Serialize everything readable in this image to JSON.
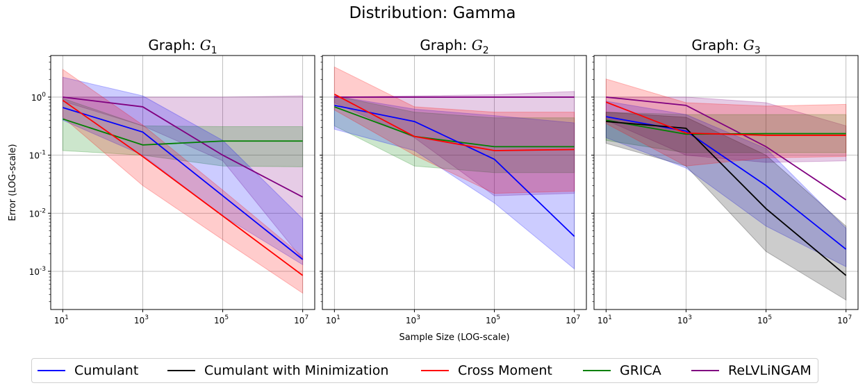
{
  "figure": {
    "suptitle": "Distribution: Gamma",
    "xlabel": "Sample Size (LOG-scale)",
    "ylabel": "Error (LOG-scale)"
  },
  "legend": {
    "placement": "bottom-center",
    "entries": [
      {
        "name": "Cumulant",
        "color": "#0000ff"
      },
      {
        "name": "Cumulant with Minimization",
        "color": "#000000"
      },
      {
        "name": "Cross Moment",
        "color": "#ff0000"
      },
      {
        "name": "GRICA",
        "color": "#008000"
      },
      {
        "name": "ReLVLiNGAM",
        "color": "#800080"
      }
    ]
  },
  "chart_data": [
    {
      "type": "line",
      "title": "Graph: G1",
      "title_main": "Graph: ",
      "title_symbol": "G",
      "title_sub": "1",
      "xscale": "log",
      "yscale": "log",
      "xlim": [
        5,
        20000000
      ],
      "ylim": [
        0.00022,
        5.2
      ],
      "xticks": [
        {
          "v": 10,
          "m": "1"
        },
        {
          "v": 1000,
          "m": "3"
        },
        {
          "v": 100000,
          "m": "5"
        },
        {
          "v": 10000000,
          "m": "7"
        }
      ],
      "yticks": [
        {
          "v": 0.001,
          "m": "-3"
        },
        {
          "v": 0.01,
          "m": "-2"
        },
        {
          "v": 0.1,
          "m": "-1"
        },
        {
          "v": 1,
          "m": "0"
        }
      ],
      "grid": true,
      "x": [
        10,
        1000,
        100000,
        10000000
      ],
      "series": [
        {
          "name": "ReLVLiNGAM",
          "color": "#800080",
          "values": [
            1.0,
            0.68,
            0.1,
            0.019
          ],
          "lower": [
            0.85,
            0.32,
            0.08,
            0.0016
          ],
          "upper": [
            1.0,
            1.0,
            1.0,
            1.05
          ]
        },
        {
          "name": "GRICA",
          "color": "#008000",
          "values": [
            0.42,
            0.15,
            0.175,
            0.175
          ],
          "lower": [
            0.12,
            0.1,
            0.065,
            0.063
          ],
          "upper": [
            0.95,
            0.32,
            0.31,
            0.31
          ]
        },
        {
          "name": "Cumulant",
          "color": "#0000ff",
          "values": [
            0.66,
            0.25,
            0.02,
            0.0016
          ],
          "lower": [
            0.4,
            0.1,
            0.009,
            0.0013
          ],
          "upper": [
            2.2,
            1.05,
            0.18,
            0.008
          ]
        },
        {
          "name": "Cross Moment",
          "color": "#ff0000",
          "values": [
            0.88,
            0.095,
            0.009,
            0.00085
          ],
          "lower": [
            0.45,
            0.03,
            0.0035,
            0.00042
          ],
          "upper": [
            3.0,
            0.33,
            0.025,
            0.0018
          ]
        }
      ]
    },
    {
      "type": "line",
      "title": "Graph: G2",
      "title_main": "Graph: ",
      "title_symbol": "G",
      "title_sub": "2",
      "xscale": "log",
      "yscale": "log",
      "xlim": [
        5,
        20000000
      ],
      "ylim": [
        0.00022,
        5.2
      ],
      "xticks": [
        {
          "v": 10,
          "m": "1"
        },
        {
          "v": 1000,
          "m": "3"
        },
        {
          "v": 100000,
          "m": "5"
        },
        {
          "v": 10000000,
          "m": "7"
        }
      ],
      "yticks": [],
      "grid": true,
      "x": [
        10,
        1000,
        100000,
        10000000
      ],
      "series": [
        {
          "name": "ReLVLiNGAM",
          "color": "#800080",
          "values": [
            1.0,
            1.0,
            1.0,
            1.0
          ],
          "lower": [
            0.8,
            0.2,
            0.02,
            0.022
          ],
          "upper": [
            1.0,
            1.05,
            1.1,
            1.25
          ]
        },
        {
          "name": "GRICA",
          "color": "#008000",
          "values": [
            0.68,
            0.21,
            0.14,
            0.14
          ],
          "lower": [
            0.32,
            0.065,
            0.05,
            0.05
          ],
          "upper": [
            1.05,
            0.55,
            0.44,
            0.44
          ]
        },
        {
          "name": "Cumulant",
          "color": "#0000ff",
          "values": [
            0.72,
            0.38,
            0.085,
            0.004
          ],
          "lower": [
            0.28,
            0.12,
            0.015,
            0.0011
          ],
          "upper": [
            1.05,
            0.62,
            0.48,
            0.36
          ]
        },
        {
          "name": "Cross Moment",
          "color": "#ff0000",
          "values": [
            1.12,
            0.21,
            0.12,
            0.125
          ],
          "lower": [
            0.6,
            0.1,
            0.022,
            0.024
          ],
          "upper": [
            3.3,
            0.68,
            0.55,
            0.55
          ]
        }
      ]
    },
    {
      "type": "line",
      "title": "Graph: G3",
      "title_main": "Graph: ",
      "title_symbol": "G",
      "title_sub": "3",
      "xscale": "log",
      "yscale": "log",
      "xlim": [
        5,
        20000000
      ],
      "ylim": [
        0.00022,
        5.2
      ],
      "xticks": [
        {
          "v": 10,
          "m": "1"
        },
        {
          "v": 1000,
          "m": "3"
        },
        {
          "v": 100000,
          "m": "5"
        },
        {
          "v": 10000000,
          "m": "7"
        }
      ],
      "yticks": [],
      "grid": true,
      "x": [
        10,
        1000,
        100000,
        10000000
      ],
      "series": [
        {
          "name": "ReLVLiNGAM",
          "color": "#800080",
          "values": [
            1.0,
            0.72,
            0.14,
            0.017
          ],
          "lower": [
            0.4,
            0.1,
            0.075,
            0.08
          ],
          "upper": [
            1.0,
            1.0,
            0.8,
            0.32
          ]
        },
        {
          "name": "GRICA",
          "color": "#008000",
          "values": [
            0.4,
            0.23,
            0.235,
            0.235
          ],
          "lower": [
            0.18,
            0.11,
            0.11,
            0.11
          ],
          "upper": [
            0.55,
            0.5,
            0.5,
            0.5
          ]
        },
        {
          "name": "Cumulant",
          "color": "#0000ff",
          "values": [
            0.46,
            0.26,
            0.03,
            0.0024
          ],
          "lower": [
            0.2,
            0.06,
            0.006,
            0.0012
          ],
          "upper": [
            0.85,
            0.5,
            0.13,
            0.0055
          ]
        },
        {
          "name": "Cumulant with Minimization",
          "color": "#000000",
          "values": [
            0.38,
            0.29,
            0.012,
            0.00085
          ],
          "lower": [
            0.16,
            0.065,
            0.0022,
            0.00032
          ],
          "upper": [
            0.55,
            0.45,
            0.1,
            0.006
          ]
        },
        {
          "name": "Cross Moment",
          "color": "#ff0000",
          "values": [
            0.82,
            0.24,
            0.22,
            0.22
          ],
          "lower": [
            0.35,
            0.065,
            0.09,
            0.095
          ],
          "upper": [
            2.05,
            0.8,
            0.7,
            0.75
          ]
        }
      ]
    }
  ]
}
